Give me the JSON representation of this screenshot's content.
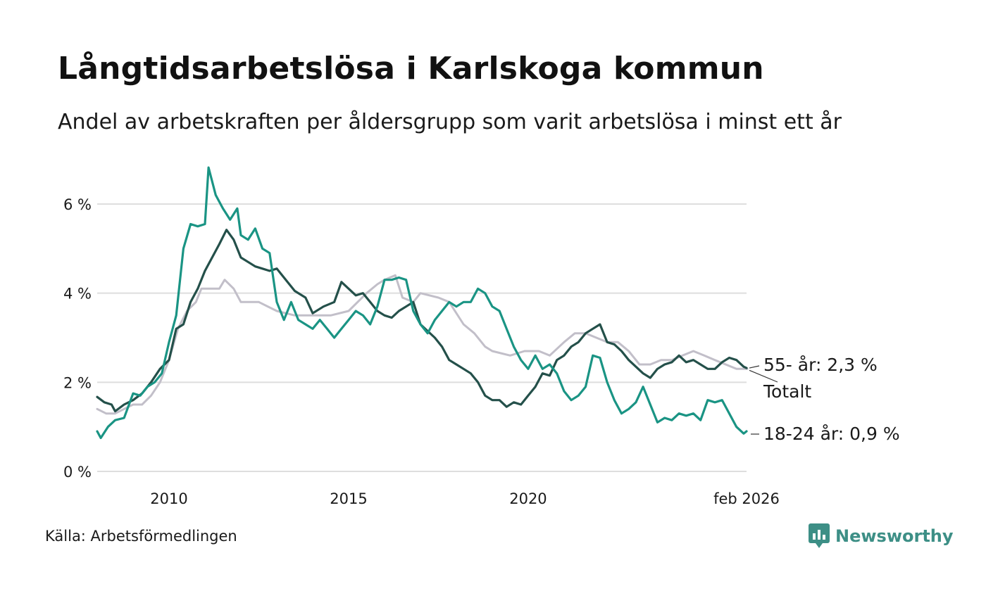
{
  "header": {
    "title": "Långtidsarbetslösa i Karlskoga kommun",
    "subtitle": "Andel av arbetskraften per åldersgrupp som varit arbetslösa i minst ett år"
  },
  "footer": {
    "source": "Källa: Arbetsförmedlingen",
    "brand": "Newsworthy"
  },
  "colors": {
    "youth": "#1a9484",
    "senior": "#24504a",
    "total": "#c2bfc9",
    "grid": "#dedede",
    "brand": "#3d8f86"
  },
  "chart_data": {
    "type": "line",
    "title": "Långtidsarbetslösa i Karlskoga kommun",
    "xlabel": "",
    "ylabel": "",
    "x_range": [
      2008.0,
      2026.17
    ],
    "ylim": [
      0,
      6.8
    ],
    "y_ticks": [
      0,
      2,
      4,
      6
    ],
    "y_tick_labels": [
      "0 %",
      "2 %",
      "4 %",
      "6 %"
    ],
    "x_ticks": [
      2010,
      2015,
      2020,
      2026.08
    ],
    "x_tick_labels": [
      "2010",
      "2015",
      "2020",
      "feb 2026"
    ],
    "grid": true,
    "series": [
      {
        "name": "Totalt",
        "end_label": "Totalt",
        "color_key": "total",
        "points": [
          [
            2008.0,
            1.4
          ],
          [
            2008.25,
            1.3
          ],
          [
            2008.5,
            1.3
          ],
          [
            2008.75,
            1.4
          ],
          [
            2009.0,
            1.5
          ],
          [
            2009.25,
            1.5
          ],
          [
            2009.5,
            1.7
          ],
          [
            2009.75,
            2.0
          ],
          [
            2010.0,
            2.5
          ],
          [
            2010.25,
            3.2
          ],
          [
            2010.5,
            3.6
          ],
          [
            2010.75,
            3.8
          ],
          [
            2010.9,
            4.1
          ],
          [
            2011.2,
            4.1
          ],
          [
            2011.4,
            4.1
          ],
          [
            2011.55,
            4.3
          ],
          [
            2011.8,
            4.1
          ],
          [
            2012.0,
            3.8
          ],
          [
            2012.5,
            3.8
          ],
          [
            2013.0,
            3.6
          ],
          [
            2013.5,
            3.5
          ],
          [
            2014.0,
            3.5
          ],
          [
            2014.5,
            3.5
          ],
          [
            2015.0,
            3.6
          ],
          [
            2015.5,
            4.0
          ],
          [
            2015.8,
            4.2
          ],
          [
            2016.0,
            4.3
          ],
          [
            2016.3,
            4.4
          ],
          [
            2016.5,
            3.9
          ],
          [
            2016.8,
            3.8
          ],
          [
            2017.0,
            4.0
          ],
          [
            2017.5,
            3.9
          ],
          [
            2017.8,
            3.8
          ],
          [
            2018.2,
            3.3
          ],
          [
            2018.5,
            3.1
          ],
          [
            2018.8,
            2.8
          ],
          [
            2019.0,
            2.7
          ],
          [
            2019.5,
            2.6
          ],
          [
            2019.9,
            2.7
          ],
          [
            2020.3,
            2.7
          ],
          [
            2020.6,
            2.6
          ],
          [
            2021.0,
            2.9
          ],
          [
            2021.3,
            3.1
          ],
          [
            2021.6,
            3.1
          ],
          [
            2021.9,
            3.0
          ],
          [
            2022.2,
            2.9
          ],
          [
            2022.5,
            2.9
          ],
          [
            2022.8,
            2.7
          ],
          [
            2023.1,
            2.4
          ],
          [
            2023.4,
            2.4
          ],
          [
            2023.7,
            2.5
          ],
          [
            2024.0,
            2.5
          ],
          [
            2024.3,
            2.6
          ],
          [
            2024.6,
            2.7
          ],
          [
            2024.9,
            2.6
          ],
          [
            2025.2,
            2.5
          ],
          [
            2025.5,
            2.4
          ],
          [
            2025.8,
            2.3
          ],
          [
            2026.1,
            2.3
          ]
        ]
      },
      {
        "name": "55- år",
        "end_label": "55- år: 2,3 %",
        "color_key": "senior",
        "points": [
          [
            2008.0,
            1.67
          ],
          [
            2008.2,
            1.55
          ],
          [
            2008.4,
            1.5
          ],
          [
            2008.5,
            1.35
          ],
          [
            2008.75,
            1.5
          ],
          [
            2009.0,
            1.6
          ],
          [
            2009.25,
            1.75
          ],
          [
            2009.5,
            2.0
          ],
          [
            2009.75,
            2.3
          ],
          [
            2010.0,
            2.5
          ],
          [
            2010.2,
            3.2
          ],
          [
            2010.4,
            3.3
          ],
          [
            2010.6,
            3.8
          ],
          [
            2010.8,
            4.1
          ],
          [
            2011.0,
            4.5
          ],
          [
            2011.2,
            4.8
          ],
          [
            2011.4,
            5.1
          ],
          [
            2011.6,
            5.42
          ],
          [
            2011.8,
            5.2
          ],
          [
            2012.0,
            4.8
          ],
          [
            2012.2,
            4.7
          ],
          [
            2012.4,
            4.6
          ],
          [
            2012.6,
            4.55
          ],
          [
            2012.8,
            4.5
          ],
          [
            2013.0,
            4.55
          ],
          [
            2013.2,
            4.35
          ],
          [
            2013.5,
            4.05
          ],
          [
            2013.8,
            3.9
          ],
          [
            2014.0,
            3.55
          ],
          [
            2014.3,
            3.7
          ],
          [
            2014.6,
            3.8
          ],
          [
            2014.8,
            4.25
          ],
          [
            2015.0,
            4.1
          ],
          [
            2015.2,
            3.95
          ],
          [
            2015.4,
            4.0
          ],
          [
            2015.6,
            3.8
          ],
          [
            2015.8,
            3.6
          ],
          [
            2016.0,
            3.5
          ],
          [
            2016.2,
            3.45
          ],
          [
            2016.4,
            3.6
          ],
          [
            2016.6,
            3.7
          ],
          [
            2016.8,
            3.8
          ],
          [
            2017.0,
            3.3
          ],
          [
            2017.2,
            3.15
          ],
          [
            2017.4,
            3.0
          ],
          [
            2017.6,
            2.8
          ],
          [
            2017.8,
            2.5
          ],
          [
            2018.0,
            2.4
          ],
          [
            2018.2,
            2.3
          ],
          [
            2018.4,
            2.2
          ],
          [
            2018.6,
            2.0
          ],
          [
            2018.8,
            1.7
          ],
          [
            2019.0,
            1.6
          ],
          [
            2019.2,
            1.6
          ],
          [
            2019.4,
            1.45
          ],
          [
            2019.6,
            1.55
          ],
          [
            2019.8,
            1.5
          ],
          [
            2020.0,
            1.7
          ],
          [
            2020.2,
            1.9
          ],
          [
            2020.4,
            2.2
          ],
          [
            2020.6,
            2.15
          ],
          [
            2020.8,
            2.5
          ],
          [
            2021.0,
            2.6
          ],
          [
            2021.2,
            2.8
          ],
          [
            2021.4,
            2.9
          ],
          [
            2021.6,
            3.1
          ],
          [
            2021.8,
            3.2
          ],
          [
            2022.0,
            3.3
          ],
          [
            2022.2,
            2.9
          ],
          [
            2022.4,
            2.85
          ],
          [
            2022.6,
            2.7
          ],
          [
            2022.8,
            2.5
          ],
          [
            2023.0,
            2.35
          ],
          [
            2023.2,
            2.2
          ],
          [
            2023.4,
            2.1
          ],
          [
            2023.6,
            2.3
          ],
          [
            2023.8,
            2.4
          ],
          [
            2024.0,
            2.45
          ],
          [
            2024.2,
            2.6
          ],
          [
            2024.4,
            2.45
          ],
          [
            2024.6,
            2.5
          ],
          [
            2024.8,
            2.4
          ],
          [
            2025.0,
            2.3
          ],
          [
            2025.2,
            2.3
          ],
          [
            2025.4,
            2.45
          ],
          [
            2025.6,
            2.55
          ],
          [
            2025.8,
            2.5
          ],
          [
            2026.0,
            2.35
          ],
          [
            2026.08,
            2.32
          ]
        ]
      },
      {
        "name": "18-24 år",
        "end_label": "18-24 år: 0,9 %",
        "color_key": "youth",
        "points": [
          [
            2008.0,
            0.9
          ],
          [
            2008.1,
            0.75
          ],
          [
            2008.3,
            1.0
          ],
          [
            2008.5,
            1.15
          ],
          [
            2008.75,
            1.2
          ],
          [
            2009.0,
            1.75
          ],
          [
            2009.2,
            1.7
          ],
          [
            2009.4,
            1.9
          ],
          [
            2009.6,
            2.0
          ],
          [
            2009.8,
            2.2
          ],
          [
            2010.0,
            2.9
          ],
          [
            2010.2,
            3.5
          ],
          [
            2010.4,
            5.0
          ],
          [
            2010.6,
            5.55
          ],
          [
            2010.8,
            5.5
          ],
          [
            2011.0,
            5.55
          ],
          [
            2011.1,
            6.82
          ],
          [
            2011.3,
            6.2
          ],
          [
            2011.5,
            5.9
          ],
          [
            2011.7,
            5.65
          ],
          [
            2011.9,
            5.9
          ],
          [
            2012.0,
            5.3
          ],
          [
            2012.2,
            5.2
          ],
          [
            2012.4,
            5.45
          ],
          [
            2012.6,
            5.0
          ],
          [
            2012.8,
            4.9
          ],
          [
            2013.0,
            3.8
          ],
          [
            2013.2,
            3.4
          ],
          [
            2013.4,
            3.8
          ],
          [
            2013.6,
            3.4
          ],
          [
            2013.8,
            3.3
          ],
          [
            2014.0,
            3.2
          ],
          [
            2014.2,
            3.4
          ],
          [
            2014.4,
            3.2
          ],
          [
            2014.6,
            3.0
          ],
          [
            2014.8,
            3.2
          ],
          [
            2015.0,
            3.4
          ],
          [
            2015.2,
            3.6
          ],
          [
            2015.4,
            3.5
          ],
          [
            2015.6,
            3.3
          ],
          [
            2015.8,
            3.7
          ],
          [
            2016.0,
            4.3
          ],
          [
            2016.2,
            4.3
          ],
          [
            2016.4,
            4.35
          ],
          [
            2016.6,
            4.3
          ],
          [
            2016.8,
            3.6
          ],
          [
            2017.0,
            3.3
          ],
          [
            2017.2,
            3.1
          ],
          [
            2017.4,
            3.4
          ],
          [
            2017.6,
            3.6
          ],
          [
            2017.8,
            3.8
          ],
          [
            2018.0,
            3.7
          ],
          [
            2018.2,
            3.8
          ],
          [
            2018.4,
            3.8
          ],
          [
            2018.6,
            4.1
          ],
          [
            2018.8,
            4.0
          ],
          [
            2019.0,
            3.7
          ],
          [
            2019.2,
            3.6
          ],
          [
            2019.4,
            3.2
          ],
          [
            2019.6,
            2.8
          ],
          [
            2019.8,
            2.5
          ],
          [
            2020.0,
            2.3
          ],
          [
            2020.2,
            2.6
          ],
          [
            2020.4,
            2.3
          ],
          [
            2020.6,
            2.4
          ],
          [
            2020.8,
            2.2
          ],
          [
            2021.0,
            1.8
          ],
          [
            2021.2,
            1.6
          ],
          [
            2021.4,
            1.7
          ],
          [
            2021.6,
            1.9
          ],
          [
            2021.8,
            2.6
          ],
          [
            2022.0,
            2.55
          ],
          [
            2022.2,
            2.0
          ],
          [
            2022.4,
            1.6
          ],
          [
            2022.6,
            1.3
          ],
          [
            2022.8,
            1.4
          ],
          [
            2023.0,
            1.55
          ],
          [
            2023.2,
            1.9
          ],
          [
            2023.4,
            1.5
          ],
          [
            2023.6,
            1.1
          ],
          [
            2023.8,
            1.2
          ],
          [
            2024.0,
            1.15
          ],
          [
            2024.2,
            1.3
          ],
          [
            2024.4,
            1.25
          ],
          [
            2024.6,
            1.3
          ],
          [
            2024.8,
            1.15
          ],
          [
            2025.0,
            1.6
          ],
          [
            2025.2,
            1.55
          ],
          [
            2025.4,
            1.6
          ],
          [
            2025.6,
            1.3
          ],
          [
            2025.8,
            1.0
          ],
          [
            2026.0,
            0.85
          ],
          [
            2026.08,
            0.9
          ]
        ]
      }
    ]
  }
}
